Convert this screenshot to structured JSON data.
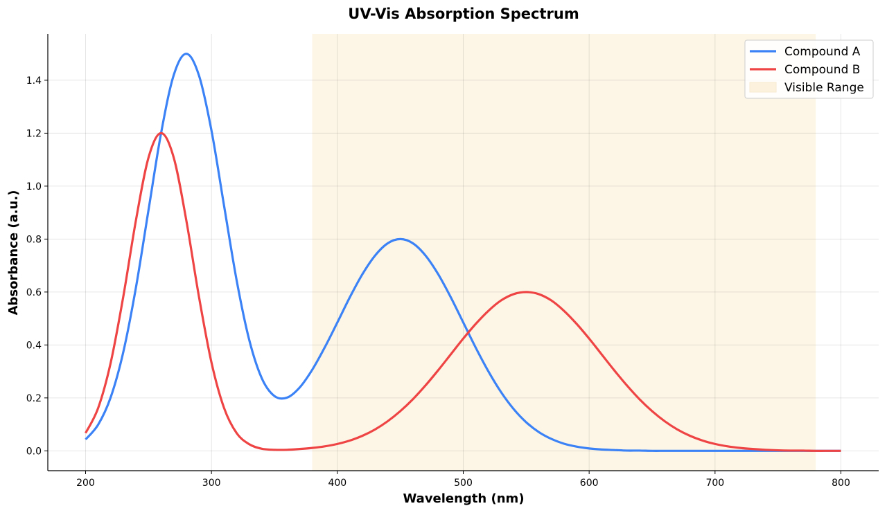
{
  "chart_data": {
    "type": "line",
    "title": "UV-Vis Absorption Spectrum",
    "xlabel": "Wavelength (nm)",
    "ylabel": "Absorbance (a.u.)",
    "xlim": [
      170,
      830
    ],
    "ylim": [
      -0.075,
      1.575
    ],
    "xticks": [
      200,
      300,
      400,
      500,
      600,
      700,
      800
    ],
    "yticks": [
      0.0,
      0.2,
      0.4,
      0.6,
      0.8,
      1.0,
      1.2,
      1.4
    ],
    "grid": true,
    "legend_position": "top-right",
    "x": [
      200,
      210,
      220,
      230,
      240,
      250,
      260,
      270,
      280,
      290,
      300,
      310,
      320,
      330,
      340,
      350,
      360,
      370,
      380,
      390,
      400,
      410,
      420,
      430,
      440,
      450,
      460,
      470,
      480,
      490,
      500,
      510,
      520,
      530,
      540,
      550,
      560,
      570,
      580,
      590,
      600,
      610,
      620,
      630,
      640,
      650,
      660,
      670,
      680,
      690,
      700,
      710,
      720,
      730,
      740,
      750,
      760,
      770,
      780,
      790,
      800
    ],
    "series": [
      {
        "name": "Compound A",
        "color": "#3b82f6",
        "values": [
          0.043,
          0.099,
          0.203,
          0.374,
          0.617,
          0.91,
          1.201,
          1.419,
          1.5,
          1.419,
          1.21,
          0.926,
          0.644,
          0.419,
          0.274,
          0.207,
          0.201,
          0.239,
          0.306,
          0.391,
          0.485,
          0.581,
          0.668,
          0.738,
          0.784,
          0.8,
          0.784,
          0.738,
          0.668,
          0.581,
          0.485,
          0.389,
          0.3,
          0.222,
          0.158,
          0.108,
          0.071,
          0.045,
          0.027,
          0.016,
          0.009,
          0.005,
          0.003,
          0.001,
          0.001,
          0,
          0,
          0,
          0,
          0,
          0,
          0,
          0,
          0,
          0,
          0,
          0,
          0,
          0,
          0,
          0
        ]
      },
      {
        "name": "Compound B",
        "color": "#ef4444",
        "values": [
          0.067,
          0.162,
          0.334,
          0.584,
          0.871,
          1.108,
          1.2,
          1.108,
          0.871,
          0.584,
          0.334,
          0.162,
          0.067,
          0.025,
          0.008,
          0.004,
          0.004,
          0.007,
          0.011,
          0.017,
          0.026,
          0.039,
          0.057,
          0.081,
          0.112,
          0.15,
          0.195,
          0.247,
          0.304,
          0.364,
          0.424,
          0.48,
          0.529,
          0.568,
          0.592,
          0.6,
          0.592,
          0.568,
          0.529,
          0.48,
          0.424,
          0.364,
          0.304,
          0.247,
          0.195,
          0.15,
          0.112,
          0.081,
          0.057,
          0.039,
          0.026,
          0.017,
          0.011,
          0.007,
          0.004,
          0.002,
          0.001,
          0.001,
          0,
          0,
          0
        ]
      }
    ],
    "spans": [
      {
        "name": "Visible Range",
        "x_range": [
          380,
          780
        ],
        "color": "#fdf6e7"
      }
    ]
  }
}
